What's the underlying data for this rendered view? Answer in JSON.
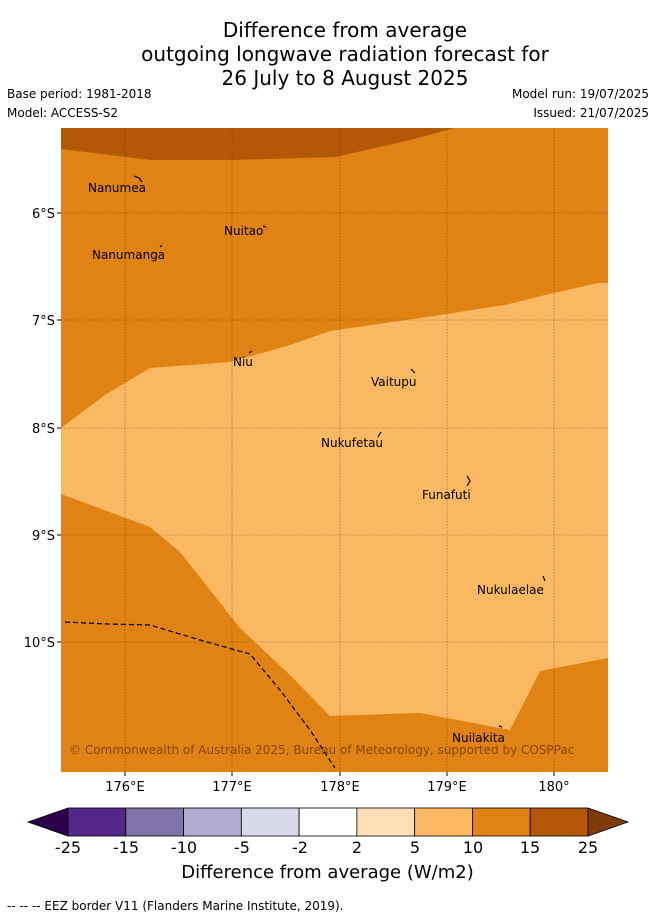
{
  "title": {
    "line1": "Difference from average",
    "line2": "outgoing longwave radiation forecast for",
    "line3": "26 July to 8 August 2025"
  },
  "meta": {
    "base_period": "Base period: 1981-2018",
    "model": "Model: ACCESS-S2",
    "model_run": "Model run: 19/07/2025",
    "issued": "Issued: 21/07/2025"
  },
  "map": {
    "lat_labels": [
      "6°S",
      "7°S",
      "8°S",
      "9°S",
      "10°S"
    ],
    "lon_labels": [
      "176°E",
      "177°E",
      "178°E",
      "179°E",
      "180°"
    ],
    "places": [
      "Nanumea",
      "Nuitao",
      "Nanumanga",
      "Niu",
      "Vaitupu",
      "Nukufetau",
      "Funafuti",
      "Nukulaelae",
      "Nuilakita"
    ],
    "copyright": "© Commonwealth of Australia 2025, Bureau of Meteorology, supported by COSPPac",
    "colors": {
      "band_5_10": "#fbb862",
      "band_10_15": "#e08214",
      "band_15_25": "#b35806"
    }
  },
  "legend": {
    "ticks": [
      "-25",
      "-15",
      "-10",
      "-5",
      "-2",
      "2",
      "5",
      "10",
      "15",
      "25"
    ],
    "colors": [
      "#2d004b",
      "#542788",
      "#8073ac",
      "#b2abd2",
      "#d8daeb",
      "#ffffff",
      "#fee0b6",
      "#fdb863",
      "#e08214",
      "#b35806",
      "#7f3b08"
    ],
    "title": "Difference from average (W/m2)"
  },
  "footnote": "--  --  -- EEZ border V11 (Flanders Marine Institute, 2019)."
}
